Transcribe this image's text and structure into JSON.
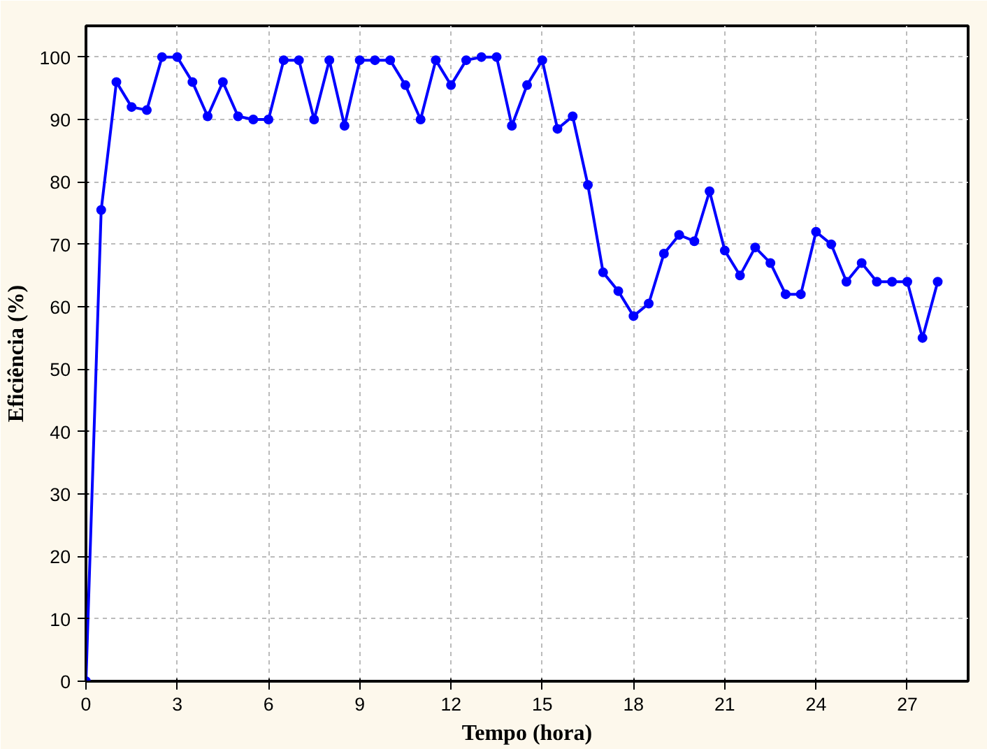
{
  "chart_data": {
    "type": "line",
    "xlabel": "Tempo (hora)",
    "ylabel": "Eficiência (%)",
    "x": [
      0,
      0.5,
      1,
      1.5,
      2,
      2.5,
      3,
      3.5,
      4,
      4.5,
      5,
      5.5,
      6,
      6.5,
      7,
      7.5,
      8,
      8.5,
      9,
      9.5,
      10,
      10.5,
      11,
      11.5,
      12,
      12.5,
      13,
      13.5,
      14,
      14.5,
      15,
      15.5,
      16,
      16.5,
      17,
      17.5,
      18,
      18.5,
      19,
      19.5,
      20,
      20.5,
      21,
      21.5,
      22,
      22.5,
      23,
      23.5,
      24,
      24.5,
      25,
      25.5,
      26,
      26.5,
      27,
      27.5,
      28
    ],
    "series": [
      {
        "color": "#0000ff",
        "values": [
          0,
          75.5,
          96,
          92,
          91.5,
          100,
          100,
          96,
          90.5,
          96,
          90.5,
          90,
          90,
          99.5,
          99.5,
          90,
          99.5,
          89,
          99.5,
          99.5,
          99.5,
          95.5,
          90,
          99.5,
          95.5,
          99.5,
          100,
          100,
          89,
          95.5,
          99.5,
          88.5,
          90.5,
          79.5,
          65.5,
          62.5,
          58.5,
          60.5,
          68.5,
          71.5,
          70.5,
          78.5,
          69,
          65,
          69.5,
          67,
          62,
          62,
          72,
          70,
          64,
          67,
          64,
          64,
          64,
          55,
          64
        ]
      }
    ],
    "xlim": [
      0,
      29
    ],
    "ylim": [
      0,
      105
    ],
    "xticks": [
      0,
      3,
      6,
      9,
      12,
      15,
      18,
      21,
      24,
      27
    ],
    "yticks": [
      0,
      10,
      20,
      30,
      40,
      50,
      60,
      70,
      80,
      90,
      100
    ],
    "grid": true,
    "marker": "circle",
    "line_style": "solid"
  }
}
